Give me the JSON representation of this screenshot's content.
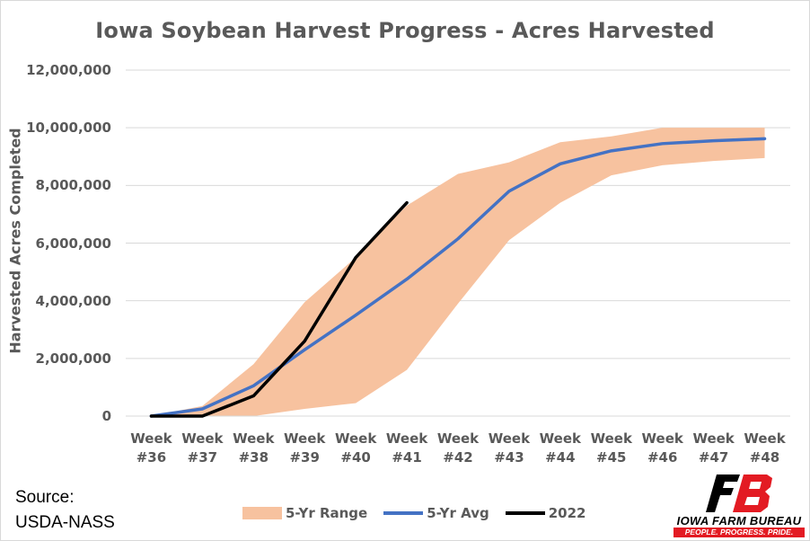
{
  "chart_data": {
    "type": "line",
    "title": "Iowa Soybean Harvest Progress - Acres Harvested",
    "ylabel": "Harvested Acres Completed",
    "xlabel": "",
    "ylim": [
      0,
      12000000
    ],
    "yticks": [
      "0",
      "2,000,000",
      "4,000,000",
      "6,000,000",
      "8,000,000",
      "10,000,000",
      "12,000,000"
    ],
    "ytick_values": [
      0,
      2000000,
      4000000,
      6000000,
      8000000,
      10000000,
      12000000
    ],
    "categories": [
      [
        "Week",
        "#36"
      ],
      [
        "Week",
        "#37"
      ],
      [
        "Week",
        "#38"
      ],
      [
        "Week",
        "#39"
      ],
      [
        "Week",
        "#40"
      ],
      [
        "Week",
        "#41"
      ],
      [
        "Week",
        "#42"
      ],
      [
        "Week",
        "#43"
      ],
      [
        "Week",
        "#44"
      ],
      [
        "Week",
        "#45"
      ],
      [
        "Week",
        "#46"
      ],
      [
        "Week",
        "#47"
      ],
      [
        "Week",
        "#48"
      ]
    ],
    "grid": true,
    "legend_position": "bottom",
    "range": {
      "name": "5-Yr Range",
      "color": "#f7c29f",
      "low": [
        0,
        0,
        0,
        250000,
        450000,
        1600000,
        3900000,
        6100000,
        7400000,
        8350000,
        8700000,
        8850000,
        8950000
      ],
      "high": [
        0,
        350000,
        1800000,
        3950000,
        5500000,
        7300000,
        8400000,
        8800000,
        9500000,
        9700000,
        10000000,
        10000000,
        10000000
      ]
    },
    "series": [
      {
        "name": "5-Yr Avg",
        "color": "#4472c4",
        "values": [
          0,
          250000,
          1050000,
          2300000,
          3500000,
          4750000,
          6150000,
          7800000,
          8750000,
          9200000,
          9450000,
          9550000,
          9620000
        ]
      },
      {
        "name": "2022",
        "color": "#000000",
        "values": [
          0,
          0,
          700000,
          2600000,
          5500000,
          7400000,
          null,
          null,
          null,
          null,
          null,
          null,
          null
        ]
      }
    ]
  },
  "source": {
    "line1": "Source:",
    "line2": "USDA-NASS"
  },
  "logo": {
    "name": "IOWA FARM BUREAU",
    "tagline": "PEOPLE. PROGRESS. PRIDE.",
    "brand_color": "#e31b23"
  }
}
